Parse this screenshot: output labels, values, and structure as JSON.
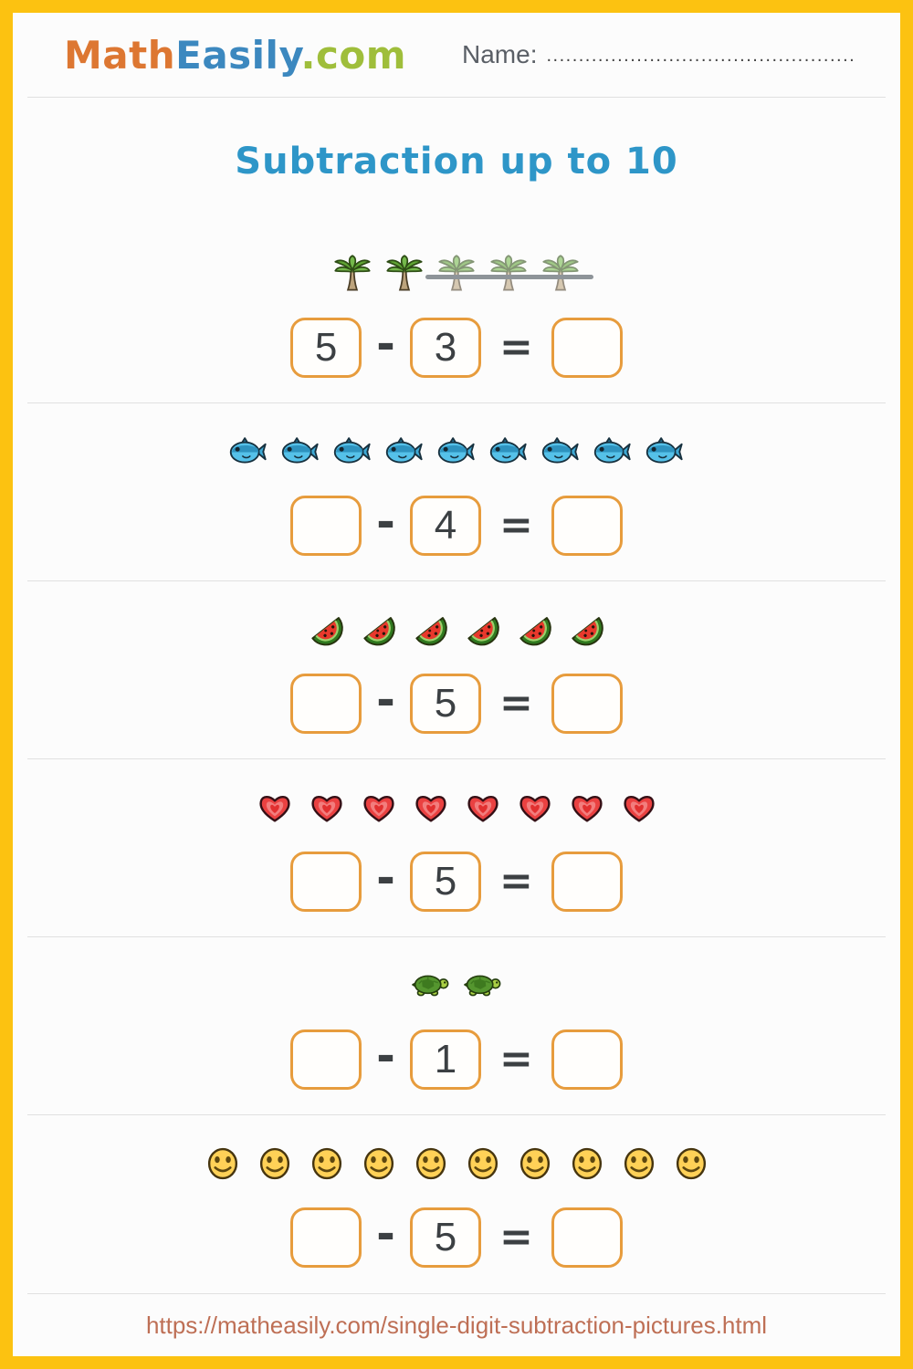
{
  "header": {
    "logo_math": "Math",
    "logo_easily": "Easily",
    "logo_com": ".com",
    "name_label": "Name:",
    "name_dots": "......................................................"
  },
  "title": "Subtraction up to 10",
  "operators": {
    "minus": "-",
    "equals": "="
  },
  "problems": [
    {
      "icon": "palm-tree-icon",
      "count": 5,
      "crossed_out": 3,
      "minuend": "5",
      "subtrahend": "3",
      "answer": ""
    },
    {
      "icon": "fish-icon",
      "count": 9,
      "crossed_out": 0,
      "minuend": "",
      "subtrahend": "4",
      "answer": ""
    },
    {
      "icon": "watermelon-icon",
      "count": 6,
      "crossed_out": 0,
      "minuend": "",
      "subtrahend": "5",
      "answer": ""
    },
    {
      "icon": "heart-icon",
      "count": 8,
      "crossed_out": 0,
      "minuend": "",
      "subtrahend": "5",
      "answer": ""
    },
    {
      "icon": "turtle-icon",
      "count": 2,
      "crossed_out": 0,
      "minuend": "",
      "subtrahend": "1",
      "answer": ""
    },
    {
      "icon": "smiley-icon",
      "count": 10,
      "crossed_out": 0,
      "minuend": "",
      "subtrahend": "5",
      "answer": ""
    }
  ],
  "footer": {
    "url": "https://matheasily.com/single-digit-subtraction-pictures.html"
  },
  "colors": {
    "border_yellow": "#FCC211",
    "logo_orange": "#DD7732",
    "logo_blue": "#3C88BF",
    "logo_green": "#9FBE3B",
    "title_blue": "#2E96C8",
    "box_orange": "#E79C3D",
    "ink": "#3C4043",
    "url_terracotta": "#BE6F55"
  }
}
